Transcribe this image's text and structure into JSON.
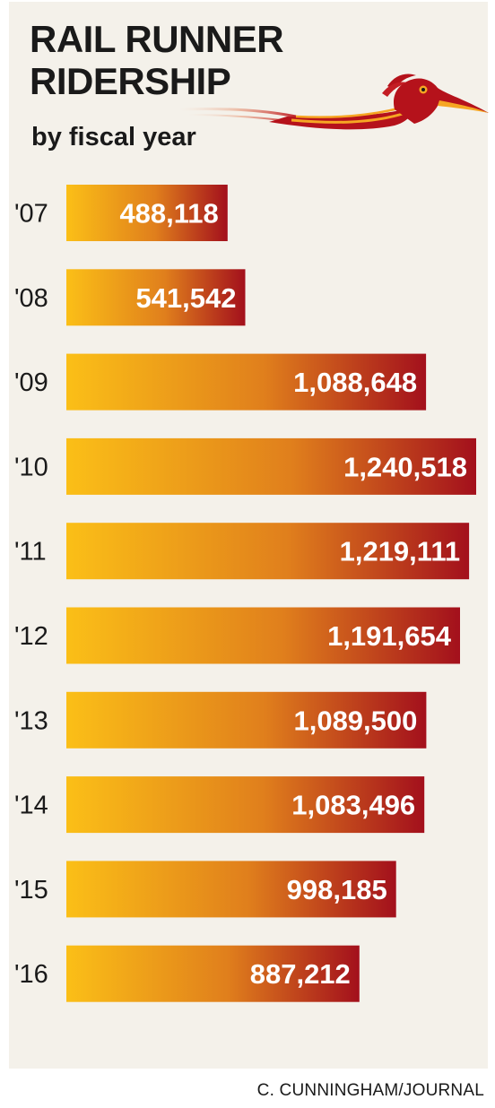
{
  "title_line1": "RAIL RUNNER",
  "title_line2": "RIDERSHIP",
  "subtitle": "by fiscal year",
  "credit": "C. CUNNINGHAM/JOURNAL",
  "logo_icon": "roadrunner-icon",
  "colors": {
    "bar_start": "#fbbf17",
    "bar_mid": "#e07f1c",
    "bar_end": "#a3101c",
    "background": "#f4f1ea",
    "text": "#1a1a1a",
    "value_text": "#ffffff"
  },
  "chart_data": {
    "type": "bar",
    "orientation": "horizontal",
    "title": "RAIL RUNNER RIDERSHIP",
    "subtitle": "by fiscal year",
    "categories": [
      "'07",
      "'08",
      "'09",
      "'10",
      "'11",
      "'12",
      "'13",
      "'14",
      "'15",
      "'16"
    ],
    "values": [
      488118,
      541542,
      1088648,
      1240518,
      1219111,
      1191654,
      1089500,
      1083496,
      998185,
      887212
    ],
    "value_labels": [
      "488,118",
      "541,542",
      "1,088,648",
      "1,240,518",
      "1,219,111",
      "1,191,654",
      "1,089,500",
      "1,083,496",
      "998,185",
      "887,212"
    ],
    "xlabel": "",
    "ylabel": "",
    "xlim": [
      0,
      1240518
    ],
    "grid": false,
    "legend": "none"
  }
}
